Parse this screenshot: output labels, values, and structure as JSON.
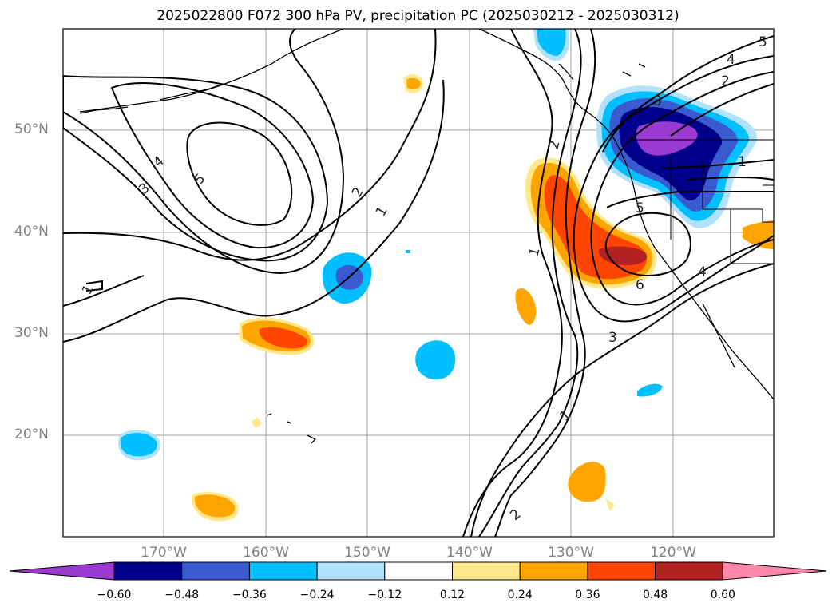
{
  "title": "2025022800 F072 300 hPa PV, precipitation PC (2025030212 - 2025030312)",
  "lat_labels": [
    "50°N",
    "40°N",
    "30°N",
    "20°N"
  ],
  "lon_labels": [
    "170°W",
    "160°W",
    "150°W",
    "140°W",
    "130°W",
    "120°W"
  ],
  "colorbar": {
    "ticks": [
      "−0.60",
      "−0.48",
      "−0.36",
      "−0.24",
      "−0.12",
      "0.12",
      "0.24",
      "0.36",
      "0.48",
      "0.60"
    ],
    "colors": [
      "#9a3ad0",
      "#00008b",
      "#3a5bd0",
      "#00bfff",
      "#b0e2ff",
      "#ffffff",
      "#ffe88a",
      "#ffa500",
      "#ff4500",
      "#b22222",
      "#ff88aa"
    ]
  },
  "pv_contour_labels": [
    "1",
    "2",
    "3",
    "4",
    "5",
    "6"
  ],
  "colors": {
    "contour": "#000000",
    "grid": "#a0a0a0",
    "axis_label": "#808080"
  }
}
